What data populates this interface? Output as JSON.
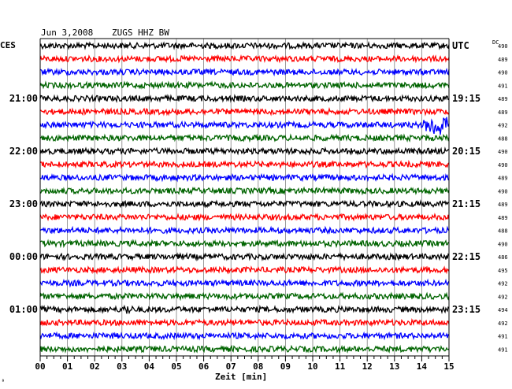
{
  "header": {
    "date": "Jun 3,2008",
    "station": "ZUGS HHZ BW"
  },
  "labels": {
    "left_tz": "CES",
    "right_tz": "UTC",
    "dc": "DC",
    "xlabel": "Zeit [min]",
    "corner_mark": "ª"
  },
  "colors": {
    "cycle": [
      "#000000",
      "#ff0000",
      "#0000ff",
      "#006400"
    ],
    "axis": "#000000",
    "grid": "#808080"
  },
  "chart_data": {
    "type": "line",
    "title": "Jun 3,2008   ZUGS HHZ BW",
    "xlabel": "Zeit [min]",
    "ylabel": "",
    "x_ticks": [
      "00",
      "01",
      "02",
      "03",
      "04",
      "05",
      "06",
      "07",
      "08",
      "09",
      "10",
      "11",
      "12",
      "13",
      "14",
      "15"
    ],
    "xlim": [
      0,
      15
    ],
    "grid": true,
    "traces_count": 24,
    "left_hour_labels": [
      {
        "trace": 4,
        "text": "21:00"
      },
      {
        "trace": 8,
        "text": "22:00"
      },
      {
        "trace": 12,
        "text": "23:00"
      },
      {
        "trace": 16,
        "text": "00:00"
      },
      {
        "trace": 20,
        "text": "01:00"
      }
    ],
    "right_utc_labels": [
      {
        "trace": 0,
        "text": "UTC"
      },
      {
        "trace": 4,
        "text": "19:15"
      },
      {
        "trace": 8,
        "text": "20:15"
      },
      {
        "trace": 12,
        "text": "21:15"
      },
      {
        "trace": 16,
        "text": "22:15"
      },
      {
        "trace": 20,
        "text": "23:15"
      }
    ],
    "dc_offsets": [
      "490",
      "489",
      "490",
      "491",
      "489",
      "489",
      "492",
      "488",
      "490",
      "490",
      "489",
      "490",
      "489",
      "489",
      "488",
      "490",
      "486",
      "495",
      "492",
      "492",
      "494",
      "492",
      "491",
      "491"
    ],
    "events": [
      {
        "trace": 6,
        "x_min_start": 13.8,
        "x_min_end": 15.0,
        "amplitude": "large"
      },
      {
        "trace": 20,
        "x_min_start": 2.9,
        "x_min_end": 3.5,
        "amplitude": "small"
      }
    ]
  }
}
